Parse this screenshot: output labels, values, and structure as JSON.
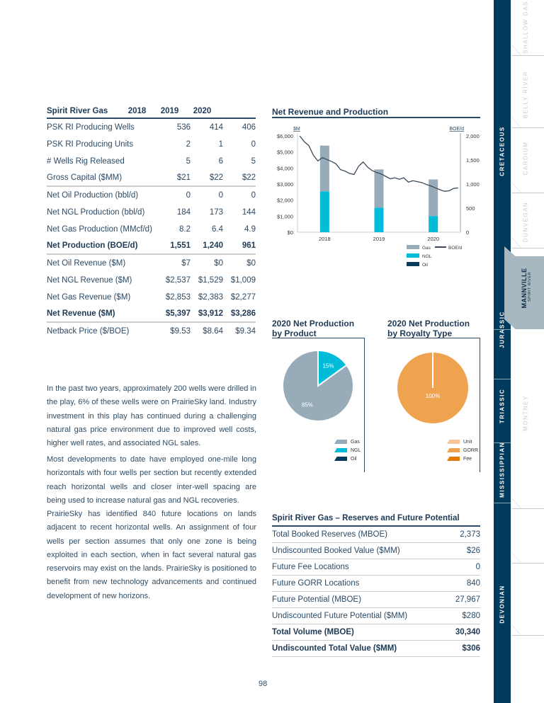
{
  "table": {
    "title": "Spirit River Gas",
    "years": [
      "2018",
      "2019",
      "2020"
    ],
    "rows": [
      {
        "label": "PSK RI Producing Wells",
        "v": [
          "536",
          "414",
          "406"
        ]
      },
      {
        "label": "PSK RI Producing Units",
        "v": [
          "2",
          "1",
          "0"
        ]
      },
      {
        "label": "# Wells Rig Released",
        "v": [
          "5",
          "6",
          "5"
        ]
      },
      {
        "label": "Gross Capital ($MM)",
        "v": [
          "$21",
          "$22",
          "$22"
        ],
        "sep": true
      },
      {
        "label": "Net Oil Production (bbl/d)",
        "v": [
          "0",
          "0",
          "0"
        ]
      },
      {
        "label": "Net NGL Production (bbl/d)",
        "v": [
          "184",
          "173",
          "144"
        ]
      },
      {
        "label": "Net Gas Production (MMcf/d)",
        "v": [
          "8.2",
          "6.4",
          "4.9"
        ]
      },
      {
        "label": "Net Production (BOE/d)",
        "v": [
          "1,551",
          "1,240",
          "961"
        ],
        "bold": true,
        "sep": true
      },
      {
        "label": "Net Oil Revenue ($M)",
        "v": [
          "$7",
          "$0",
          "$0"
        ]
      },
      {
        "label": "Net NGL Revenue ($M)",
        "v": [
          "$2,537",
          "$1,529",
          "$1,009"
        ]
      },
      {
        "label": "Net Gas Revenue ($M)",
        "v": [
          "$2,853",
          "$2,383",
          "$2,277"
        ]
      },
      {
        "label": "Net Revenue ($M)",
        "v": [
          "$5,397",
          "$3,912",
          "$3,286"
        ],
        "bold": true,
        "sep": true
      },
      {
        "label": "Netback Price ($/BOE)",
        "v": [
          "$9.53",
          "$8.64",
          "$9.34"
        ]
      }
    ]
  },
  "paragraphs": [
    "In the past two years, approximately 200 wells were drilled in the play, 6% of these wells were on PrairieSky land. Industry investment in this play has continued during a challenging natural gas price environment due to improved well costs, higher well rates, and associated NGL sales.",
    "Most developments to date have employed one-mile long horizontals with four wells per section but recently extended reach horizontal wells and closer inter-well spacing are being used to increase natural gas and NGL recoveries.",
    "PrairieSky has identified 840 future locations on lands adjacent to recent horizontal wells. An assignment of four wells per section assumes that only one zone is being exploited in each section, when in fact several natural gas reservoirs may exist on the lands. PrairieSky is positioned to benefit from new technology advancements and continued development of new horizons."
  ],
  "chart_data": [
    {
      "type": "bar",
      "title": "Net Revenue and Production",
      "ylabel": "$M",
      "y2label": "BOE/d",
      "categories": [
        "2018",
        "2019",
        "2020"
      ],
      "series": [
        {
          "name": "Oil",
          "values": [
            7,
            0,
            0
          ],
          "color": "#0b3b5c"
        },
        {
          "name": "NGL",
          "values": [
            2537,
            1529,
            1009
          ],
          "color": "#00bcd8"
        },
        {
          "name": "Gas",
          "values": [
            2853,
            2383,
            2277
          ],
          "color": "#98abb8"
        }
      ],
      "ylim": [
        0,
        6000
      ],
      "yticks": [
        "$0",
        "$1,000",
        "$2,000",
        "$3,000",
        "$4,000",
        "$5,000",
        "$6,000"
      ],
      "y2lim": [
        0,
        2000
      ],
      "y2ticks": [
        "0",
        "500",
        "1,000",
        "1,500",
        "2,000"
      ],
      "line": {
        "name": "BOE/d",
        "color": "#3b4a5c",
        "values": [
          2000,
          1880,
          1800,
          1600,
          1480,
          1550,
          1510,
          1470,
          1420,
          1300,
          1270,
          1220,
          1200,
          1370,
          1460,
          1350,
          1280,
          1240,
          1210,
          1160,
          1110,
          1130,
          1100,
          1130,
          1040,
          1070,
          1050,
          1030,
          990,
          960,
          920,
          880,
          850,
          860,
          910,
          920
        ]
      },
      "legend": [
        "Gas",
        "NGL",
        "Oil",
        "BOE/d"
      ]
    },
    {
      "type": "pie",
      "title": "2020 Net Production by Product",
      "title1": "2020 Net Production",
      "title2": "by Product",
      "slices": [
        {
          "name": "NGL",
          "value": 15,
          "label": "15%",
          "color": "#00bcd8"
        },
        {
          "name": "Gas",
          "value": 85,
          "label": "85%",
          "color": "#98abb8"
        }
      ],
      "legend": [
        {
          "name": "Gas",
          "color": "#98abb8"
        },
        {
          "name": "NGL",
          "color": "#00bcd8"
        },
        {
          "name": "Oil",
          "color": "#0b3b5c"
        }
      ]
    },
    {
      "type": "pie",
      "title": "2020 Net Production by Royalty Type",
      "title1": "2020 Net Production",
      "title2": "by Royalty Type",
      "slices": [
        {
          "name": "GORR",
          "value": 100,
          "label": "100%",
          "color": "#f0a34e"
        }
      ],
      "legend": [
        {
          "name": "Unit",
          "color": "#f5c89a"
        },
        {
          "name": "GORR",
          "color": "#f0a34e"
        },
        {
          "name": "Fee",
          "color": "#e57a00"
        }
      ]
    }
  ],
  "reserves": {
    "title": "Spirit River Gas – Reserves and Future Potential",
    "rows": [
      {
        "label": "Total Booked Reserves (MBOE)",
        "v": "2,373"
      },
      {
        "label": "Undiscounted Booked Value ($MM)",
        "v": "$26"
      },
      {
        "label": "Future Fee Locations",
        "v": "0"
      },
      {
        "label": "Future GORR Locations",
        "v": "840"
      },
      {
        "label": "Future Potential (MBOE)",
        "v": "27,967"
      },
      {
        "label": "Undiscounted Future Potential ($MM)",
        "v": "$280"
      },
      {
        "label": "Total Volume (MBOE)",
        "v": "30,340",
        "bold": true
      },
      {
        "label": "Undiscounted Total Value ($MM)",
        "v": "$306",
        "bold": true
      }
    ]
  },
  "page_number": "98",
  "nav": {
    "eras": [
      "CRETACEOUS",
      "JURASSIC",
      "TRIASSIC",
      "MISSISSIPPIAN",
      "DEVONIAN"
    ],
    "plays": [
      "SHALLOW GAS",
      "BELLY RIVER",
      "CARDIUM",
      "DUNVEGAN",
      "MANNVILLE",
      "MONTNEY"
    ],
    "active": "MANNVILLE",
    "active_sub": "SPIRIT RIVER"
  }
}
